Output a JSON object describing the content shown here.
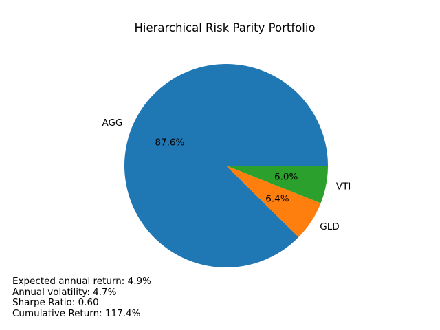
{
  "title": "Hierarchical Risk Parity Portfolio",
  "chart_data": {
    "type": "pie",
    "title": "Hierarchical Risk Parity Portfolio",
    "slices": [
      {
        "label": "AGG",
        "value": 87.6,
        "pct_label": "87.6%",
        "color": "#1f77b4"
      },
      {
        "label": "GLD",
        "value": 6.4,
        "pct_label": "6.4%",
        "color": "#ff7f0e"
      },
      {
        "label": "VTI",
        "value": 6.0,
        "pct_label": "6.0%",
        "color": "#2ca02c"
      }
    ],
    "start_angle": 0,
    "direction": "counterclockwise",
    "label_distance": 1.1,
    "pct_distance": 0.6,
    "legend": "none",
    "axes": "none"
  },
  "stats": {
    "lines": [
      "Expected annual return: 4.9%",
      "Annual volatility: 4.7%",
      "Sharpe Ratio: 0.60",
      "Cumulative Return: 117.4%"
    ]
  },
  "colors": {
    "background": "#ffffff",
    "text": "#000000"
  }
}
